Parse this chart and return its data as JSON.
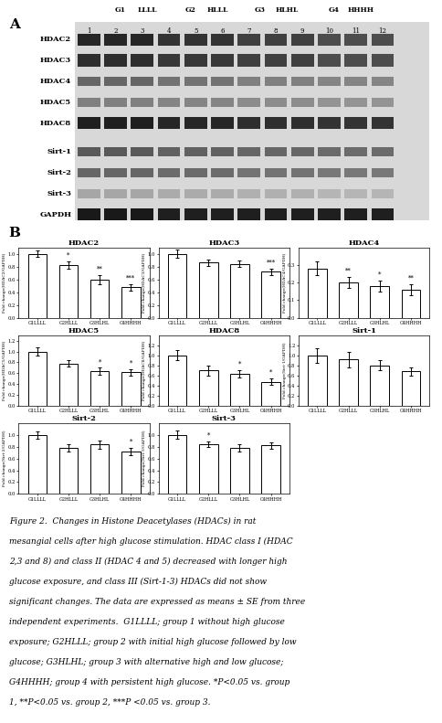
{
  "panel_A_label": "A",
  "panel_B_label": "B",
  "gel_rows": [
    "HDAC2",
    "HDAC3",
    "HDAC4",
    "HDAC5",
    "HDAC8",
    "Sirt-1",
    "Sirt-2",
    "Sirt-3",
    "GAPDH"
  ],
  "gel_col_labels_top": [
    "G1 LLLL",
    "G2 HLLL",
    "G3 HLHL",
    "G4 HHHH"
  ],
  "gel_col_numbers": [
    "1",
    "2",
    "3",
    "4",
    "5",
    "6",
    "7",
    "8",
    "9",
    "10",
    "11",
    "12"
  ],
  "bar_xlabels": [
    "G1LLLL",
    "G2HLLL",
    "G3HLHL",
    "G4HHHH"
  ],
  "bar_data": {
    "HDAC2": {
      "means": [
        1.0,
        0.82,
        0.6,
        0.48
      ],
      "errors": [
        0.05,
        0.06,
        0.07,
        0.05
      ],
      "ylim": [
        0,
        1.1
      ],
      "yticks": [
        0.0,
        0.2,
        0.4,
        0.6,
        0.8,
        1.0
      ],
      "ylabel": "Fold change(HDAC2/GAPDH)",
      "stars": [
        "",
        "*",
        "**",
        "***"
      ]
    },
    "HDAC3": {
      "means": [
        1.0,
        0.86,
        0.84,
        0.72
      ],
      "errors": [
        0.06,
        0.05,
        0.05,
        0.05
      ],
      "ylim": [
        0,
        1.1
      ],
      "yticks": [
        0.0,
        0.2,
        0.4,
        0.6,
        0.8,
        1.0
      ],
      "ylabel": "Fold change(HDAC3/GAPDH)",
      "stars": [
        "",
        "",
        "",
        "***"
      ]
    },
    "HDAC4": {
      "means": [
        0.28,
        0.2,
        0.18,
        0.16
      ],
      "errors": [
        0.04,
        0.03,
        0.03,
        0.03
      ],
      "ylim": [
        0,
        0.4
      ],
      "yticks": [
        0.0,
        0.1,
        0.2,
        0.3
      ],
      "ylabel": "Fold change(HDAC4/GAPDH)",
      "stars": [
        "",
        "**",
        "*",
        "**"
      ]
    },
    "HDAC5": {
      "means": [
        1.0,
        0.78,
        0.64,
        0.62
      ],
      "errors": [
        0.08,
        0.06,
        0.06,
        0.06
      ],
      "ylim": [
        0,
        1.3
      ],
      "yticks": [
        0.0,
        0.2,
        0.4,
        0.6,
        0.8,
        1.0,
        1.2
      ],
      "ylabel": "Fold change(HDAC5/GAPDH)",
      "stars": [
        "",
        "",
        "*",
        "*"
      ]
    },
    "HDAC8": {
      "means": [
        1.0,
        0.7,
        0.64,
        0.48
      ],
      "errors": [
        0.1,
        0.1,
        0.07,
        0.06
      ],
      "ylim": [
        0,
        1.4
      ],
      "yticks": [
        0.0,
        0.2,
        0.4,
        0.6,
        0.8,
        1.0,
        1.2
      ],
      "ylabel": "Fold change(HDAC8/GAPDH)",
      "stars": [
        "",
        "",
        "*",
        "*"
      ]
    },
    "Sirt-1": {
      "means": [
        1.0,
        0.92,
        0.8,
        0.68
      ],
      "errors": [
        0.15,
        0.15,
        0.1,
        0.08
      ],
      "ylim": [
        0,
        1.4
      ],
      "yticks": [
        0.0,
        0.2,
        0.4,
        0.6,
        0.8,
        1.0,
        1.2
      ],
      "ylabel": "Fold change(Sirt-1/GAPDH)",
      "stars": [
        "",
        "",
        "",
        ""
      ]
    },
    "Sirt-2": {
      "means": [
        1.0,
        0.78,
        0.84,
        0.72
      ],
      "errors": [
        0.06,
        0.06,
        0.07,
        0.06
      ],
      "ylim": [
        0,
        1.2
      ],
      "yticks": [
        0.0,
        0.2,
        0.4,
        0.6,
        0.8,
        1.0
      ],
      "ylabel": "Fold change(Sirt-2/GAPDH)",
      "stars": [
        "",
        "",
        "",
        "*"
      ]
    },
    "Sirt-3": {
      "means": [
        1.0,
        0.84,
        0.78,
        0.82
      ],
      "errors": [
        0.07,
        0.05,
        0.06,
        0.06
      ],
      "ylim": [
        0,
        1.2
      ],
      "yticks": [
        0.0,
        0.2,
        0.4,
        0.6,
        0.8,
        1.0
      ],
      "ylabel": "Fold change(Sirt-3/GAPDH)",
      "stars": [
        "",
        "*",
        "",
        ""
      ]
    }
  },
  "band_intensities": {
    "HDAC2": [
      0.85,
      0.85,
      0.85,
      0.8,
      0.8,
      0.8,
      0.75,
      0.75,
      0.75,
      0.7,
      0.7,
      0.7
    ],
    "HDAC3": [
      0.82,
      0.82,
      0.82,
      0.78,
      0.78,
      0.78,
      0.75,
      0.75,
      0.75,
      0.7,
      0.7,
      0.7
    ],
    "HDAC4": [
      0.6,
      0.6,
      0.6,
      0.55,
      0.55,
      0.55,
      0.5,
      0.5,
      0.5,
      0.48,
      0.48,
      0.48
    ],
    "HDAC5": [
      0.5,
      0.5,
      0.5,
      0.48,
      0.48,
      0.48,
      0.45,
      0.45,
      0.45,
      0.42,
      0.42,
      0.42
    ],
    "HDAC8": [
      0.88,
      0.88,
      0.88,
      0.85,
      0.85,
      0.85,
      0.82,
      0.82,
      0.82,
      0.8,
      0.8,
      0.8
    ],
    "Sirt-1": [
      0.65,
      0.65,
      0.65,
      0.62,
      0.62,
      0.62,
      0.6,
      0.6,
      0.6,
      0.58,
      0.58,
      0.58
    ],
    "Sirt-2": [
      0.6,
      0.6,
      0.6,
      0.58,
      0.58,
      0.58,
      0.55,
      0.55,
      0.55,
      0.53,
      0.53,
      0.53
    ],
    "Sirt-3": [
      0.35,
      0.35,
      0.35,
      0.33,
      0.33,
      0.33,
      0.31,
      0.31,
      0.31,
      0.29,
      0.29,
      0.29
    ],
    "GAPDH": [
      0.9,
      0.9,
      0.9,
      0.88,
      0.88,
      0.88,
      0.88,
      0.88,
      0.88,
      0.88,
      0.88,
      0.88
    ]
  },
  "thick_rows": [
    "HDAC2",
    "HDAC3",
    "HDAC8",
    "GAPDH"
  ],
  "bar_color": "#ffffff",
  "bar_edgecolor": "#000000",
  "background_color": "#ffffff",
  "caption_lines": [
    "Figure 2.  Changes in Histone Deacetylases (HDACs) in rat",
    "mesangial cells after high glucose stimulation. HDAC class I (HDAC",
    "2,3 and 8) and class II (HDAC 4 and 5) decreased with longer high",
    "glucose exposure, and class III (Sirt-1-3) HDACs did not show",
    "significant changes. The data are expressed as means ± SE from three",
    "independent experiments.  G1LLLL; group 1 without high glucose",
    "exposure; G2HLLL; group 2 with initial high glucose followed by low",
    "glucose; G3HLHL; group 3 with alternative high and low glucose;",
    "G4HHHH; group 4 with persistent high glucose. *P<0.05 vs. group",
    "1, **P<0.05 vs. group 2, ***P <0.05 vs. group 3."
  ]
}
